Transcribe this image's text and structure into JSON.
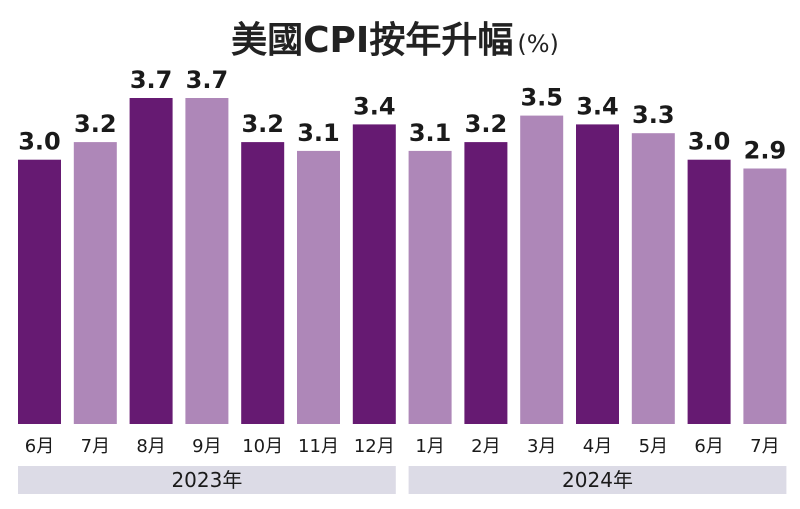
{
  "chart_data": {
    "type": "bar",
    "title": "美國CPI按年升幅",
    "unit": "(%)",
    "categories": [
      "6月",
      "7月",
      "8月",
      "9月",
      "10月",
      "11月",
      "12月",
      "1月",
      "2月",
      "3月",
      "4月",
      "5月",
      "6月",
      "7月"
    ],
    "values": [
      3.0,
      3.2,
      3.7,
      3.7,
      3.2,
      3.1,
      3.4,
      3.1,
      3.2,
      3.5,
      3.4,
      3.3,
      3.0,
      2.9
    ],
    "value_labels": [
      "3.0",
      "3.2",
      "3.7",
      "3.7",
      "3.2",
      "3.1",
      "3.4",
      "3.1",
      "3.2",
      "3.5",
      "3.4",
      "3.3",
      "3.0",
      "2.9"
    ],
    "bar_colors": [
      "#661a72",
      "#ae87b8",
      "#661a72",
      "#ae87b8",
      "#661a72",
      "#ae87b8",
      "#661a72",
      "#ae87b8",
      "#661a72",
      "#ae87b8",
      "#661a72",
      "#ae87b8",
      "#661a72",
      "#ae87b8"
    ],
    "year_groups": [
      {
        "label": "2023年",
        "start": 0,
        "end": 6
      },
      {
        "label": "2024年",
        "start": 7,
        "end": 13
      }
    ],
    "ylim": [
      0,
      3.7
    ],
    "grid": false,
    "legend": "none"
  },
  "colors": {
    "dark_bar": "#661a72",
    "light_bar": "#ae87b8",
    "year_band": "#dcdbe6"
  }
}
